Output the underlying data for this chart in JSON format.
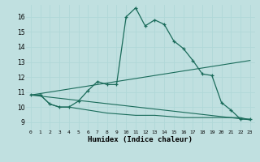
{
  "xlabel": "Humidex (Indice chaleur)",
  "xlim": [
    -0.5,
    23.5
  ],
  "ylim": [
    8.5,
    16.8
  ],
  "yticks": [
    9,
    10,
    11,
    12,
    13,
    14,
    15,
    16
  ],
  "xticks": [
    0,
    1,
    2,
    3,
    4,
    5,
    6,
    7,
    8,
    9,
    10,
    11,
    12,
    13,
    14,
    15,
    16,
    17,
    18,
    19,
    20,
    21,
    22,
    23
  ],
  "bg_color": "#c0e0e0",
  "line_color": "#1a6b5a",
  "grid_color": "#b0d8d8",
  "line1_x": [
    0,
    1,
    2,
    3,
    4,
    5,
    6,
    7,
    8,
    9,
    10,
    11,
    12,
    13,
    14,
    15,
    16,
    17,
    18,
    19,
    20,
    21,
    22,
    23
  ],
  "line1_y": [
    10.8,
    10.8,
    10.2,
    10.0,
    10.0,
    10.4,
    11.1,
    11.7,
    11.5,
    11.5,
    16.0,
    16.6,
    15.4,
    15.8,
    15.5,
    14.4,
    13.9,
    13.1,
    12.2,
    12.1,
    10.3,
    9.8,
    9.2,
    9.2
  ],
  "line2_x": [
    0,
    23
  ],
  "line2_y": [
    10.8,
    13.1
  ],
  "line3_x": [
    0,
    23
  ],
  "line3_y": [
    10.8,
    9.15
  ],
  "line4_x": [
    0,
    1,
    2,
    3,
    4,
    5,
    6,
    7,
    8,
    9,
    10,
    11,
    12,
    13,
    14,
    15,
    16,
    17,
    18,
    19,
    20,
    21,
    22,
    23
  ],
  "line4_y": [
    10.8,
    10.8,
    10.2,
    10.0,
    10.0,
    9.9,
    9.8,
    9.7,
    9.6,
    9.55,
    9.5,
    9.45,
    9.45,
    9.45,
    9.4,
    9.35,
    9.3,
    9.3,
    9.3,
    9.3,
    9.3,
    9.3,
    9.3,
    9.15
  ]
}
